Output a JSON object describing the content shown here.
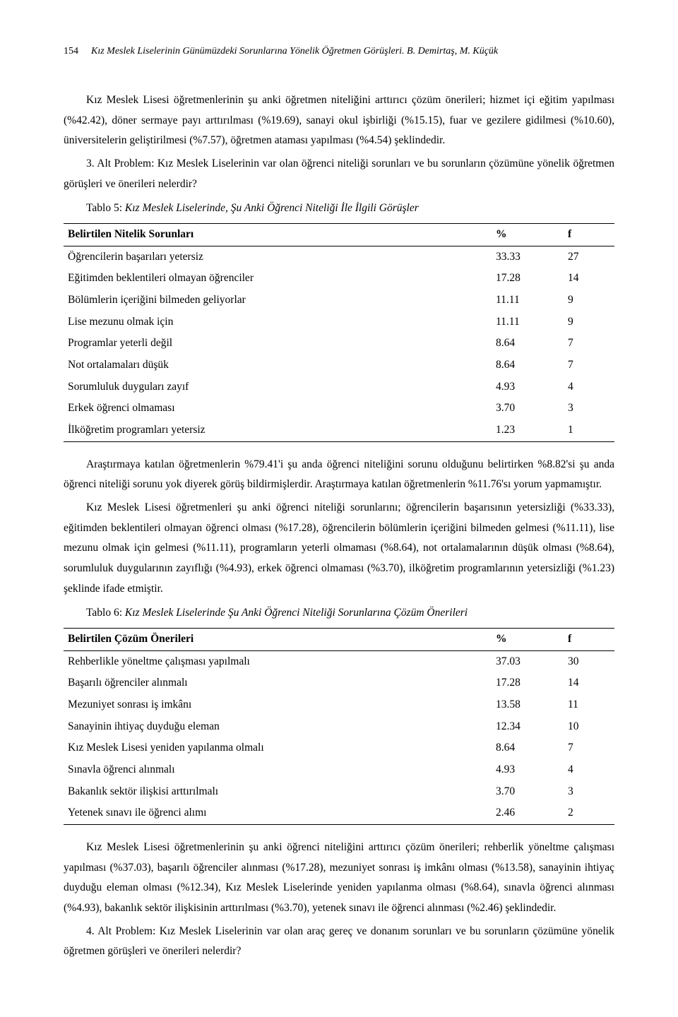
{
  "header": {
    "page_number": "154",
    "running_title": "Kız Meslek Liselerinin Günümüzdeki Sorunlarına Yönelik Öğretmen Görüşleri. B. Demirtaş, M. Küçük"
  },
  "p1": "Kız Meslek Lisesi öğretmenlerinin şu anki öğretmen niteliğini arttırıcı çözüm önerileri; hizmet içi eğitim yapılması (%42.42), döner sermaye payı arttırılması (%19.69), sanayi okul işbirliği (%15.15), fuar ve gezilere gidilmesi (%10.60), üniversitelerin geliştirilmesi (%7.57), öğretmen ataması yapılması (%4.54) şeklindedir.",
  "p2": "3. Alt Problem: Kız Meslek Liselerinin var olan öğrenci niteliği sorunları ve bu sorunların çözümüne yönelik öğretmen görüşleri ve önerileri nelerdir?",
  "table5": {
    "caption_label": "Tablo 5:",
    "caption_title": "Kız Meslek Liselerinde, Şu Anki Öğrenci Niteliği İle İlgili Görüşler",
    "header": {
      "c0": "Belirtilen Nitelik Sorunları",
      "c1": "%",
      "c2": "f"
    },
    "rows": [
      {
        "label": "Öğrencilerin başarıları yetersiz",
        "pct": "33.33",
        "f": "27"
      },
      {
        "label": "Eğitimden beklentileri olmayan öğrenciler",
        "pct": "17.28",
        "f": "14"
      },
      {
        "label": "Bölümlerin içeriğini bilmeden geliyorlar",
        "pct": "11.11",
        "f": "9"
      },
      {
        "label": "Lise mezunu olmak için",
        "pct": "11.11",
        "f": "9"
      },
      {
        "label": "Programlar yeterli değil",
        "pct": "8.64",
        "f": "7"
      },
      {
        "label": "Not ortalamaları düşük",
        "pct": "8.64",
        "f": "7"
      },
      {
        "label": "Sorumluluk duyguları zayıf",
        "pct": "4.93",
        "f": "4"
      },
      {
        "label": "Erkek öğrenci olmaması",
        "pct": "3.70",
        "f": "3"
      },
      {
        "label": "İlköğretim programları yetersiz",
        "pct": "1.23",
        "f": "1"
      }
    ]
  },
  "p3": "Araştırmaya katılan öğretmenlerin %79.41'i şu anda öğrenci niteliğini sorunu olduğunu belirtirken %8.82'si şu anda öğrenci niteliği sorunu yok diyerek görüş bildirmişlerdir. Araştırmaya katılan öğretmenlerin %11.76'sı yorum yapmamıştır.",
  "p4": "Kız Meslek Lisesi öğretmenleri şu anki öğrenci niteliği sorunlarını; öğrencilerin başarısının yetersizliği (%33.33), eğitimden beklentileri olmayan öğrenci olması (%17.28), öğrencilerin bölümlerin içeriğini bilmeden gelmesi (%11.11), lise mezunu olmak için gelmesi (%11.11), programların yeterli olmaması (%8.64), not ortalamalarının düşük olması (%8.64), sorumluluk duygularının zayıflığı (%4.93), erkek öğrenci olmaması (%3.70), ilköğretim programlarının yetersizliği (%1.23) şeklinde ifade etmiştir.",
  "table6": {
    "caption_label": "Tablo 6:",
    "caption_title": "Kız Meslek Liselerinde Şu Anki Öğrenci Niteliği Sorunlarına Çözüm Önerileri",
    "header": {
      "c0": "Belirtilen Çözüm Önerileri",
      "c1": "%",
      "c2": "f"
    },
    "rows": [
      {
        "label": "Rehberlikle yöneltme çalışması yapılmalı",
        "pct": "37.03",
        "f": "30"
      },
      {
        "label": "Başarılı öğrenciler alınmalı",
        "pct": "17.28",
        "f": "14"
      },
      {
        "label": "Mezuniyet sonrası iş imkânı",
        "pct": "13.58",
        "f": "11"
      },
      {
        "label": "Sanayinin ihtiyaç duyduğu eleman",
        "pct": "12.34",
        "f": "10"
      },
      {
        "label": "Kız Meslek Lisesi yeniden yapılanma olmalı",
        "pct": "8.64",
        "f": "7"
      },
      {
        "label": "Sınavla öğrenci alınmalı",
        "pct": "4.93",
        "f": "4"
      },
      {
        "label": "Bakanlık sektör ilişkisi arttırılmalı",
        "pct": "3.70",
        "f": "3"
      },
      {
        "label": "Yetenek sınavı ile öğrenci alımı",
        "pct": "2.46",
        "f": "2"
      }
    ]
  },
  "p5": "Kız Meslek Lisesi öğretmenlerinin şu anki öğrenci niteliğini arttırıcı çözüm önerileri; rehberlik yöneltme çalışması yapılması (%37.03), başarılı öğrenciler alınması (%17.28), mezuniyet sonrası iş imkânı olması (%13.58), sanayinin ihtiyaç duyduğu eleman olması (%12.34), Kız Meslek Liselerinde yeniden yapılanma olması (%8.64), sınavla öğrenci alınması (%4.93), bakanlık sektör ilişkisinin arttırılması (%3.70), yetenek sınavı ile öğrenci alınması (%2.46) şeklindedir.",
  "p6": "4. Alt Problem: Kız Meslek Liselerinin var olan araç gereç ve donanım sorunları ve bu sorunların çözümüne yönelik öğretmen görüşleri ve önerileri nelerdir?"
}
